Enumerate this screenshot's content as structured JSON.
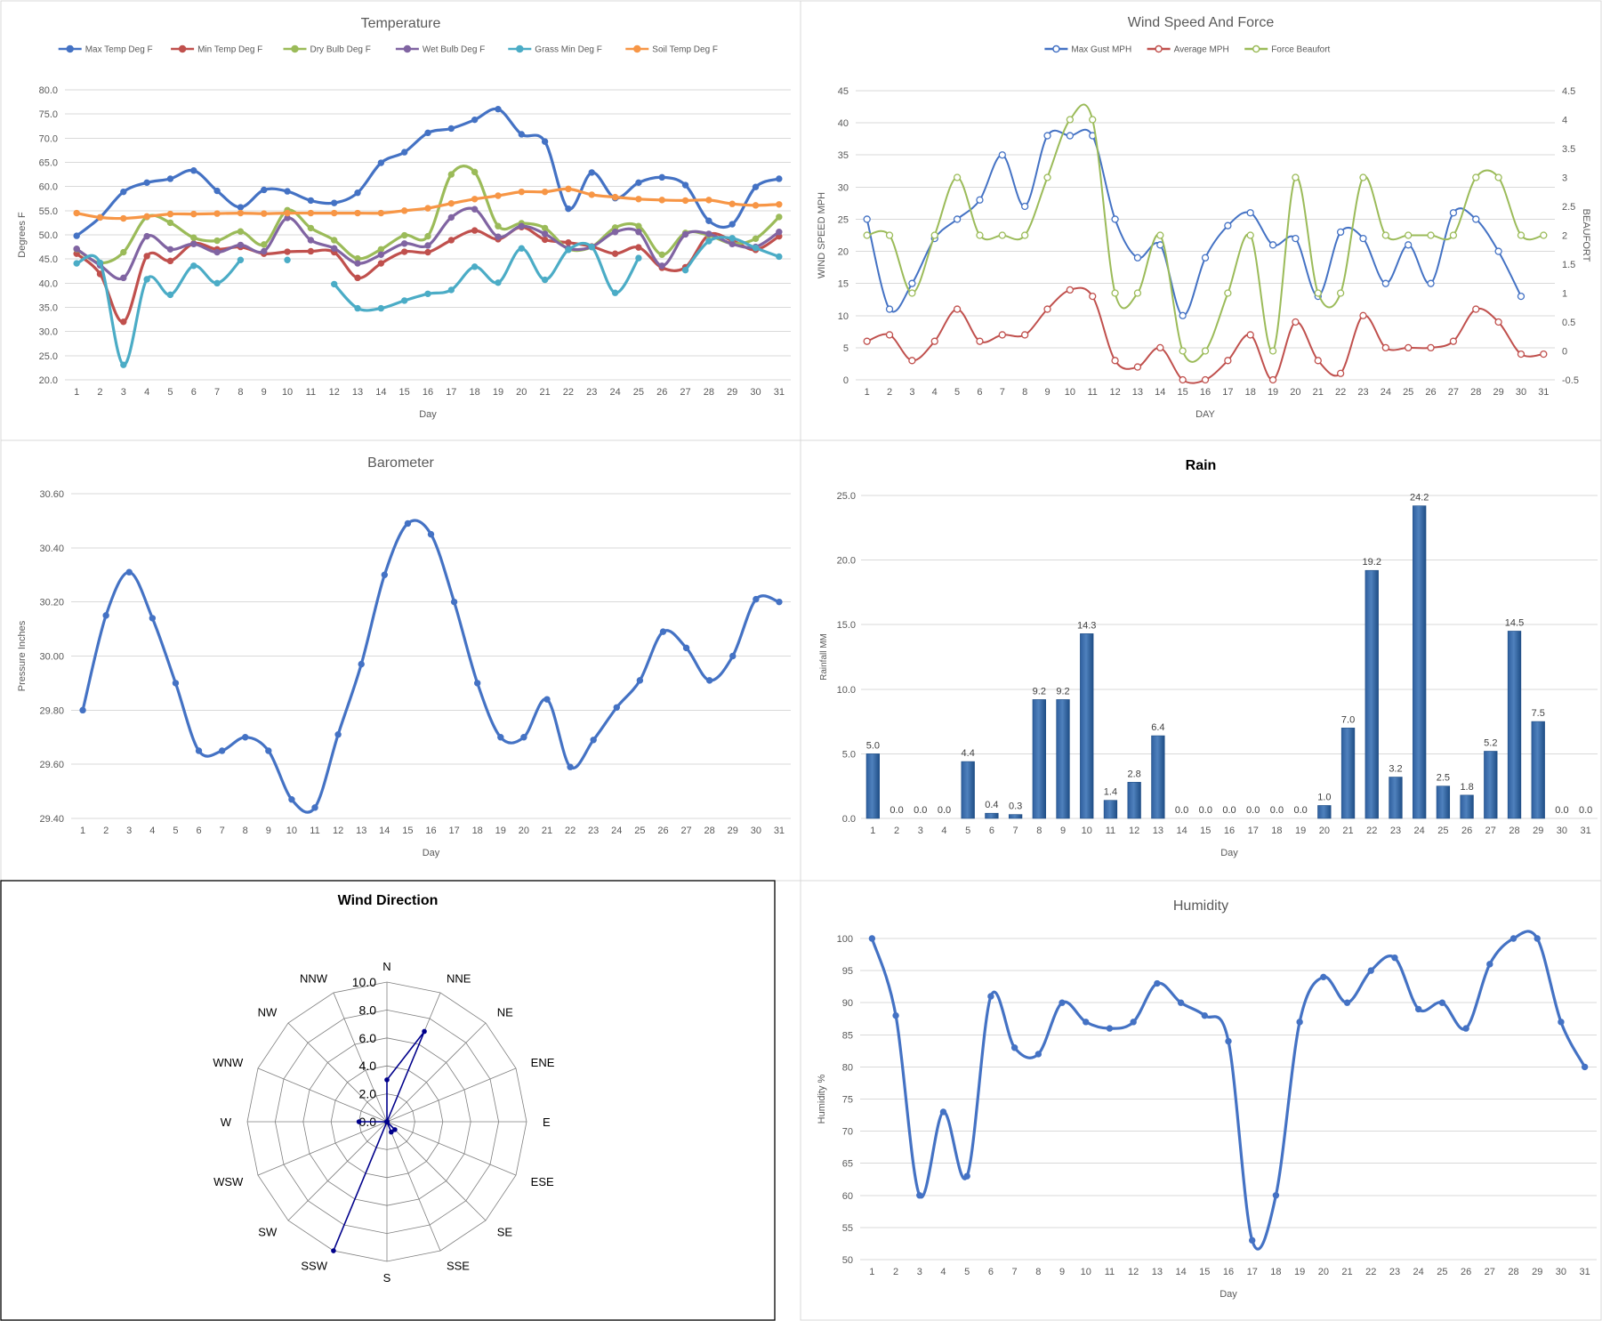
{
  "chart_data": [
    {
      "id": "temperature",
      "type": "line",
      "title": "Temperature",
      "xlabel": "Day",
      "ylabel": "Degrees F",
      "categories": [
        1,
        2,
        3,
        4,
        5,
        6,
        7,
        8,
        9,
        10,
        11,
        12,
        13,
        14,
        15,
        16,
        17,
        18,
        19,
        20,
        21,
        22,
        23,
        24,
        25,
        26,
        27,
        28,
        29,
        30,
        31
      ],
      "ylim": [
        20,
        80
      ],
      "ytick_step": 5,
      "y_decimals": 1,
      "grid": true,
      "legend_position": "top",
      "series": [
        {
          "name": "Max Temp Deg F",
          "color": "#4472c4",
          "marker": "filled",
          "values": [
            49.8,
            53.6,
            58.9,
            60.8,
            61.6,
            63.3,
            59.1,
            55.7,
            59.3,
            59.0,
            57.1,
            56.6,
            58.7,
            64.9,
            67.1,
            71.1,
            72.0,
            73.8,
            76.0,
            70.8,
            69.3,
            55.4,
            62.9,
            57.6,
            60.8,
            61.9,
            60.3,
            52.9,
            52.2,
            59.9,
            61.6
          ]
        },
        {
          "name": "Min Temp Deg F",
          "color": "#c0504d",
          "marker": "filled",
          "values": [
            46.1,
            41.9,
            32.0,
            45.6,
            44.6,
            48.2,
            47.0,
            47.5,
            46.1,
            46.5,
            46.6,
            46.4,
            41.1,
            44.1,
            46.5,
            46.4,
            48.9,
            50.9,
            49.1,
            51.6,
            49.0,
            48.4,
            47.6,
            46.1,
            47.4,
            43.2,
            43.3,
            50.0,
            48.8,
            46.9,
            49.7
          ]
        },
        {
          "name": "Dry Bulb Deg F",
          "color": "#9bbb59",
          "marker": "filled",
          "values": [
            47.0,
            44.2,
            46.4,
            53.7,
            52.5,
            49.4,
            48.8,
            50.7,
            48.0,
            55.1,
            51.4,
            48.9,
            45.1,
            47.0,
            49.9,
            49.7,
            62.5,
            63.0,
            51.8,
            52.4,
            51.4,
            47.1,
            47.5,
            51.5,
            51.8,
            45.9,
            50.4,
            49.9,
            48.2,
            49.2,
            53.7
          ]
        },
        {
          "name": "Wet Bulb Deg F",
          "color": "#8064a2",
          "marker": "filled",
          "values": [
            47.1,
            43.7,
            41.1,
            49.7,
            47.0,
            48.1,
            46.4,
            47.9,
            46.6,
            53.5,
            48.9,
            47.2,
            44.1,
            45.9,
            48.2,
            47.8,
            53.6,
            55.3,
            49.6,
            51.8,
            50.2,
            47.2,
            47.5,
            50.6,
            50.6,
            43.6,
            50.1,
            50.2,
            48.1,
            47.5,
            50.6
          ]
        },
        {
          "name": "Grass Min Deg F",
          "color": "#4bacc6",
          "marker": "filled",
          "values": [
            44.1,
            44.2,
            23.1,
            40.8,
            37.6,
            43.6,
            40.0,
            44.8,
            null,
            44.8,
            null,
            39.8,
            34.8,
            34.8,
            36.4,
            37.8,
            38.6,
            43.4,
            40.1,
            47.2,
            40.7,
            46.9,
            47.5,
            38.0,
            45.2,
            null,
            42.7,
            48.7,
            49.3,
            47.3,
            45.5
          ]
        },
        {
          "name": "Soil Temp Deg F",
          "color": "#f79646",
          "marker": "filled",
          "values": [
            54.5,
            53.6,
            53.4,
            53.8,
            54.3,
            54.3,
            54.4,
            54.5,
            54.4,
            54.5,
            54.5,
            54.5,
            54.5,
            54.5,
            55.0,
            55.5,
            56.5,
            57.4,
            58.1,
            58.9,
            58.9,
            59.5,
            58.3,
            57.8,
            57.4,
            57.2,
            57.1,
            57.2,
            56.4,
            56.1,
            56.3
          ]
        }
      ]
    },
    {
      "id": "wind",
      "type": "line",
      "title": "Wind Speed And Force",
      "xlabel": "DAY",
      "ylabel": "WIND SPEED MPH",
      "ylabel_right": "BEAUFORT",
      "categories": [
        1,
        2,
        3,
        4,
        5,
        6,
        7,
        8,
        9,
        10,
        11,
        12,
        13,
        14,
        15,
        16,
        17,
        18,
        19,
        20,
        21,
        22,
        23,
        24,
        25,
        26,
        27,
        28,
        29,
        30,
        31
      ],
      "ylim": [
        0,
        45
      ],
      "ytick_step": 5,
      "ylim_right": [
        -0.5,
        4.5
      ],
      "ytick_step_right": 0.5,
      "grid": true,
      "legend_position": "top",
      "series": [
        {
          "name": "Max Gust MPH",
          "color": "#4472c4",
          "marker": "open",
          "axis": "left",
          "values": [
            25,
            11,
            15,
            22,
            25,
            28,
            35,
            27,
            38,
            38,
            38,
            25,
            19,
            21,
            10,
            19,
            24,
            26,
            21,
            22,
            13,
            23,
            22,
            15,
            21,
            15,
            26,
            25,
            20,
            13,
            null
          ]
        },
        {
          "name": "Average MPH",
          "color": "#c0504d",
          "marker": "open",
          "axis": "left",
          "values": [
            6,
            7,
            3,
            6,
            11,
            6,
            7,
            7,
            11,
            14,
            13,
            3,
            2,
            5,
            0,
            0,
            3,
            7,
            0,
            9,
            3,
            1,
            10,
            5,
            5,
            5,
            6,
            11,
            9,
            4,
            4
          ]
        },
        {
          "name": "Force Beaufort",
          "color": "#9bbb59",
          "marker": "open",
          "axis": "right",
          "values": [
            2,
            2,
            1,
            2,
            3,
            2,
            2,
            2,
            3,
            4,
            4,
            1,
            1,
            2,
            0,
            0,
            1,
            2,
            0,
            3,
            1,
            1,
            3,
            2,
            2,
            2,
            2,
            3,
            3,
            2,
            2
          ]
        }
      ]
    },
    {
      "id": "barometer",
      "type": "line",
      "title": "Barometer",
      "xlabel": "Day",
      "ylabel": "Pressure Inches",
      "categories": [
        1,
        2,
        3,
        4,
        5,
        6,
        7,
        8,
        9,
        10,
        11,
        12,
        13,
        14,
        15,
        16,
        17,
        18,
        19,
        20,
        21,
        22,
        23,
        24,
        25,
        26,
        27,
        28,
        29,
        30,
        31
      ],
      "ylim": [
        29.4,
        30.6
      ],
      "ytick_step": 0.2,
      "y_decimals": 2,
      "grid": true,
      "series": [
        {
          "name": "",
          "color": "#4472c4",
          "marker": "filled",
          "values": [
            29.8,
            30.15,
            30.31,
            30.14,
            29.9,
            29.65,
            29.65,
            29.7,
            29.65,
            29.47,
            29.44,
            29.71,
            29.97,
            30.3,
            30.49,
            30.45,
            30.2,
            29.9,
            29.7,
            29.7,
            29.84,
            29.59,
            29.69,
            29.81,
            29.91,
            30.09,
            30.03,
            29.91,
            30.0,
            30.21,
            30.2
          ]
        }
      ]
    },
    {
      "id": "rain",
      "type": "bar",
      "title": "Rain",
      "xlabel": "Day",
      "ylabel": "Rainfall MM",
      "categories": [
        1,
        2,
        3,
        4,
        5,
        6,
        7,
        8,
        9,
        10,
        11,
        12,
        13,
        14,
        15,
        16,
        17,
        18,
        19,
        20,
        21,
        22,
        23,
        24,
        25,
        26,
        27,
        28,
        29,
        30,
        31
      ],
      "values": [
        5.0,
        0.0,
        0.0,
        0.0,
        4.4,
        0.4,
        0.3,
        9.2,
        9.2,
        14.3,
        1.4,
        2.8,
        6.4,
        0.0,
        0.0,
        0.0,
        0.0,
        0.0,
        0.0,
        1.0,
        7.0,
        19.2,
        3.2,
        24.2,
        2.5,
        1.8,
        5.2,
        14.5,
        7.5,
        0.0,
        0.0
      ],
      "ylim": [
        0,
        25
      ],
      "ytick_step": 5,
      "y_decimals": 1,
      "color": "#4f81bd",
      "grid": true
    },
    {
      "id": "wind_direction",
      "type": "radar",
      "title": "Wind Direction",
      "categories": [
        "N",
        "NNE",
        "NE",
        "ENE",
        "E",
        "ESE",
        "SE",
        "SSE",
        "S",
        "SSW",
        "SW",
        "WSW",
        "W",
        "WNW",
        "NW",
        "NNW"
      ],
      "values": [
        3,
        7,
        0,
        0,
        0,
        0,
        0.8,
        0.8,
        0,
        10,
        0,
        0,
        2,
        0,
        0,
        0
      ],
      "rlim": [
        0,
        10
      ],
      "rtick_step": 2,
      "color": "#00008b",
      "grid": true
    },
    {
      "id": "humidity",
      "type": "line",
      "title": "Humidity",
      "xlabel": "Day",
      "ylabel": "Humidity %",
      "categories": [
        1,
        2,
        3,
        4,
        5,
        6,
        7,
        8,
        9,
        10,
        11,
        12,
        13,
        14,
        15,
        16,
        17,
        18,
        19,
        20,
        21,
        22,
        23,
        24,
        25,
        26,
        27,
        28,
        29,
        30,
        31
      ],
      "ylim": [
        50,
        100
      ],
      "ytick_step": 5,
      "y_decimals": 0,
      "grid": true,
      "series": [
        {
          "name": "",
          "color": "#4472c4",
          "marker": "filled",
          "values": [
            100,
            88,
            60,
            73,
            63,
            91,
            83,
            82,
            90,
            87,
            86,
            87,
            93,
            90,
            88,
            84,
            53,
            60,
            87,
            94,
            90,
            95,
            97,
            89,
            90,
            86,
            96,
            100,
            100,
            87,
            80
          ]
        }
      ]
    }
  ]
}
